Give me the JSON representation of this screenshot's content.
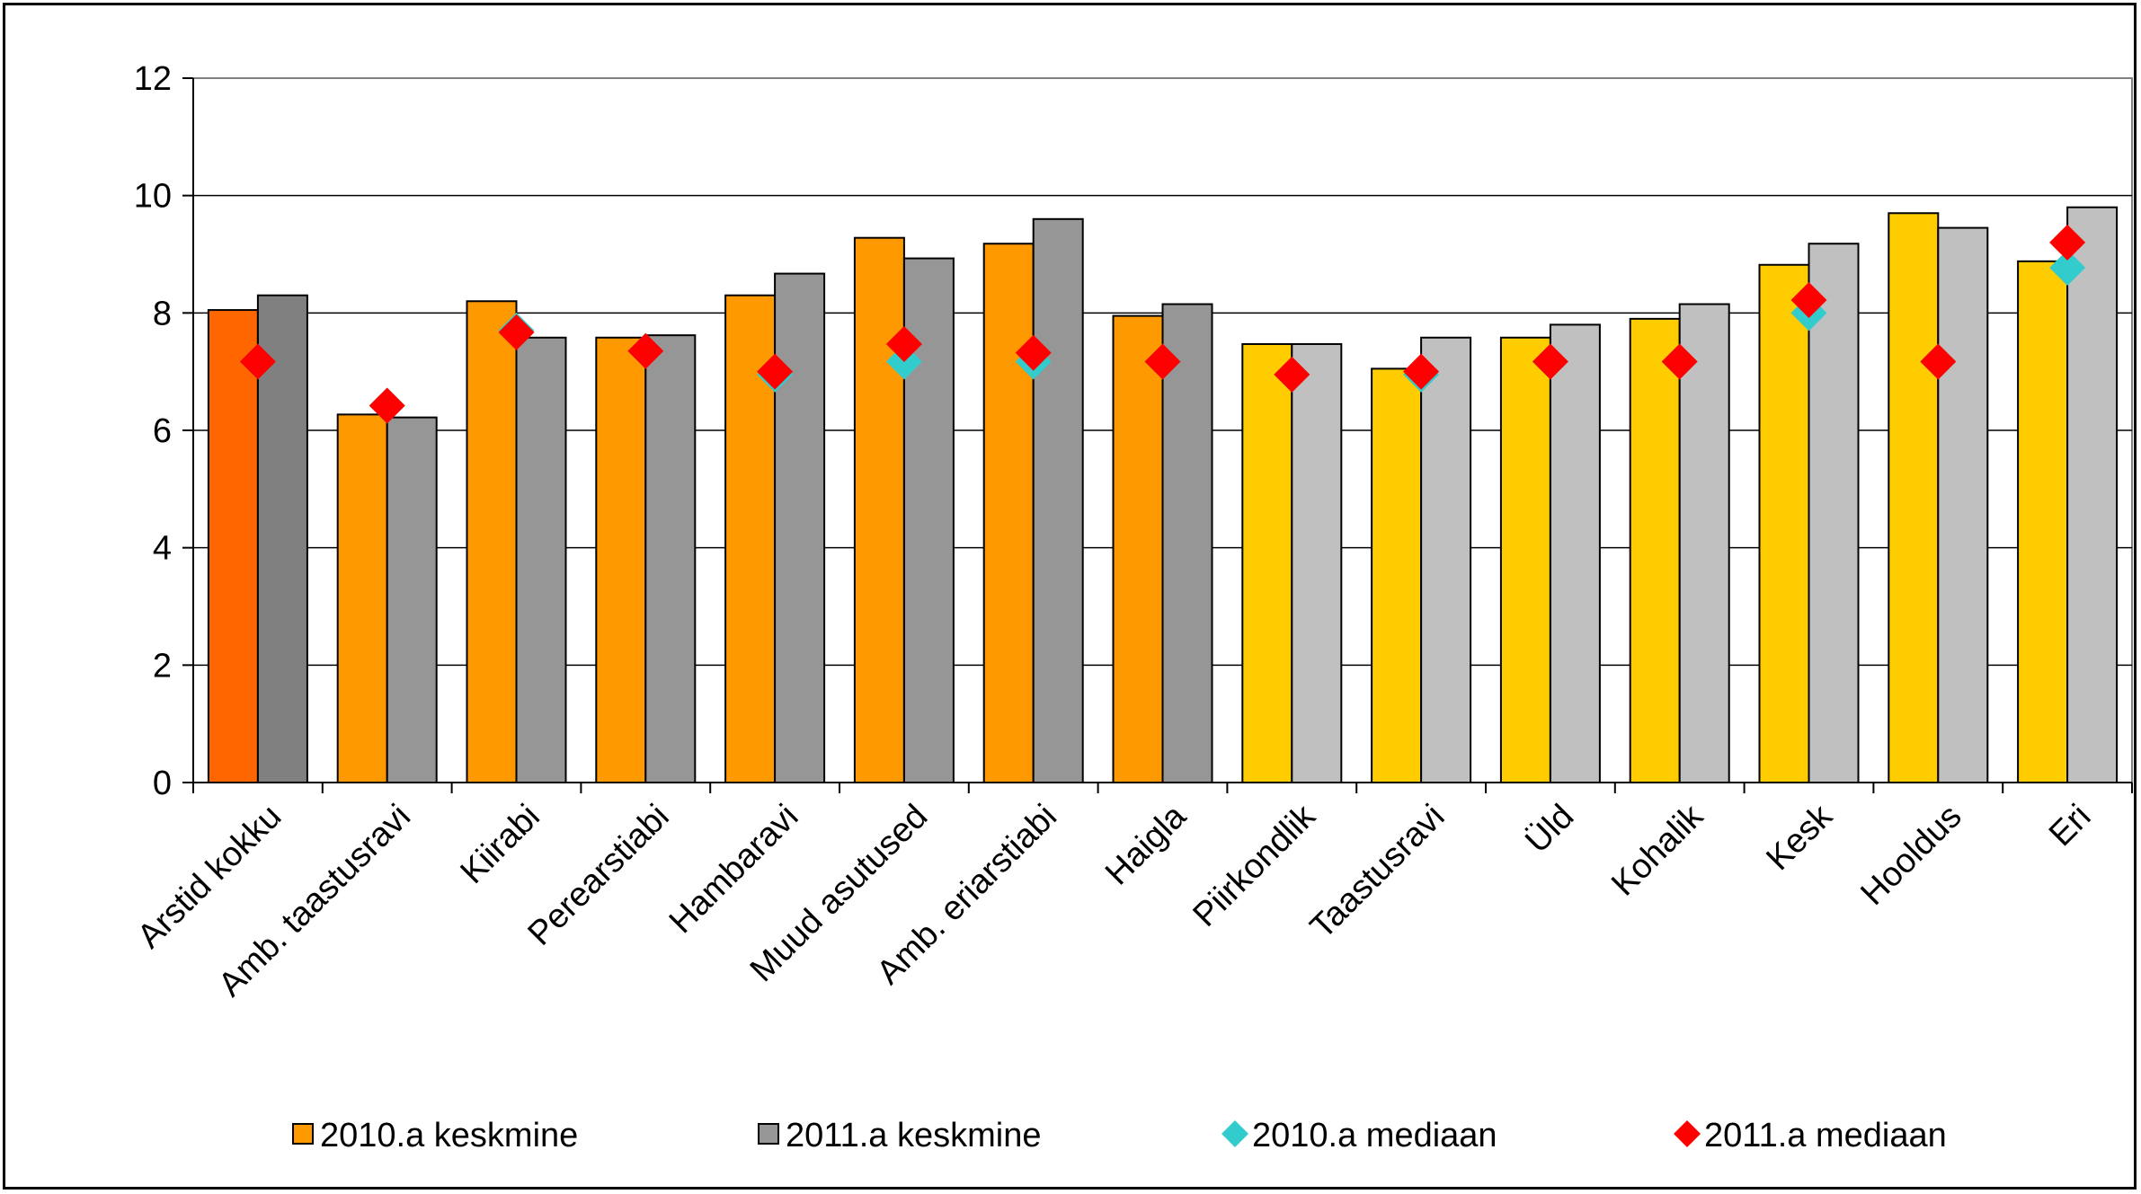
{
  "chart_data": {
    "type": "bar",
    "categories": [
      "Arstid kokku",
      "Amb. taastusravi",
      "Kiirabi",
      "Perearstiabi",
      "Hambaravi",
      "Muud asutused",
      "Amb. eriarstiabi",
      "Haigla",
      "Piirkondlik",
      "Taastusravi",
      "Üld",
      "Kohalik",
      "Kesk",
      "Hooldus",
      "Eri"
    ],
    "series": [
      {
        "name": "2010.a keskmine",
        "kind": "bar",
        "values": [
          8.05,
          6.27,
          8.2,
          7.58,
          8.3,
          9.28,
          9.18,
          7.95,
          7.47,
          7.05,
          7.58,
          7.9,
          8.82,
          9.7,
          8.88
        ]
      },
      {
        "name": "2011.a keskmine",
        "kind": "bar",
        "values": [
          8.3,
          6.22,
          7.58,
          7.62,
          8.67,
          8.93,
          9.6,
          8.15,
          7.47,
          7.58,
          7.8,
          8.15,
          9.18,
          9.45,
          9.8
        ]
      },
      {
        "name": "2010.a mediaan",
        "kind": "marker",
        "values": [
          7.17,
          6.42,
          7.7,
          7.35,
          6.95,
          7.17,
          7.17,
          7.17,
          6.95,
          6.95,
          7.17,
          7.17,
          8.0,
          7.17,
          8.77
        ]
      },
      {
        "name": "2011.a mediaan",
        "kind": "marker",
        "values": [
          7.17,
          6.42,
          7.67,
          7.35,
          7.0,
          7.47,
          7.32,
          7.17,
          6.95,
          7.0,
          7.17,
          7.17,
          8.22,
          7.17,
          9.2
        ]
      }
    ],
    "bar_colors_2010": [
      "#ff6600",
      "#ff9900",
      "#ff9900",
      "#ff9900",
      "#ff9900",
      "#ff9900",
      "#ff9900",
      "#ff9900",
      "#ffcc00",
      "#ffcc00",
      "#ffcc00",
      "#ffcc00",
      "#ffcc00",
      "#ffcc00",
      "#ffcc00"
    ],
    "bar_colors_2011": [
      "#808080",
      "#969696",
      "#969696",
      "#969696",
      "#969696",
      "#969696",
      "#969696",
      "#969696",
      "#c0c0c0",
      "#c0c0c0",
      "#c0c0c0",
      "#c0c0c0",
      "#c0c0c0",
      "#c0c0c0",
      "#c0c0c0"
    ],
    "marker_color_2010": "#33cccc",
    "marker_color_2011": "#ff0000",
    "legend_swatch_2010": "#ff9900",
    "legend_swatch_2011": "#969696",
    "ylim": [
      0,
      12
    ],
    "yticks": [
      "0",
      "2",
      "4",
      "6",
      "8",
      "10",
      "12"
    ],
    "grid": true,
    "legend_position": "bottom",
    "title": "",
    "xlabel": "",
    "ylabel": ""
  }
}
